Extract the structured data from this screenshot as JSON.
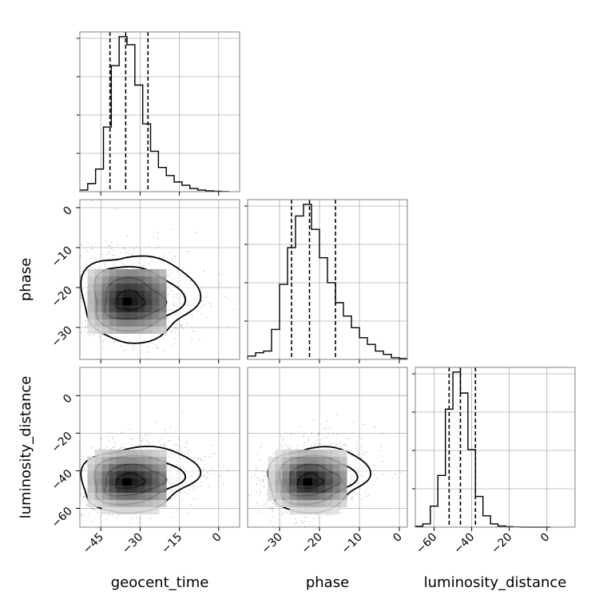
{
  "chart_data": {
    "type": "corner",
    "parameters": [
      "geocent_time",
      "phase",
      "luminosity_distance"
    ],
    "ranges": {
      "geocent_time": [
        -53,
        8
      ],
      "phase": [
        -38,
        2
      ],
      "luminosity_distance": [
        -70,
        15
      ]
    },
    "ticks": {
      "geocent_time": [
        -45,
        -30,
        -15,
        0
      ],
      "phase": [
        -30,
        -20,
        -10,
        0
      ],
      "luminosity_distance": [
        -60,
        -40,
        -20,
        0
      ]
    },
    "quantiles": {
      "geocent_time": [
        -41.5,
        -35.5,
        -27
      ],
      "phase": [
        -27,
        -22.5,
        -16
      ],
      "luminosity_distance": [
        -52,
        -46,
        -38
      ]
    },
    "histograms": {
      "geocent_time": {
        "edges": [
          -53,
          -50,
          -47,
          -44,
          -41,
          -38,
          -35,
          -32,
          -29,
          -26,
          -23,
          -20,
          -17,
          -14,
          -11,
          -8,
          -5,
          -2,
          1,
          4
        ],
        "counts": [
          1,
          5,
          14,
          40,
          78,
          96,
          91,
          66,
          42,
          25,
          15,
          10,
          6,
          4,
          2,
          1,
          0.5,
          0.3,
          0.1
        ]
      },
      "phase": {
        "edges": [
          -38,
          -36,
          -34,
          -32,
          -30,
          -28,
          -26,
          -24,
          -22,
          -20,
          -18,
          -16,
          -14,
          -12,
          -10,
          -8,
          -6,
          -4,
          -2,
          0,
          2
        ],
        "counts": [
          2,
          4,
          5,
          18,
          45,
          67,
          86,
          93,
          78,
          61,
          46,
          34,
          26,
          19,
          13,
          9,
          5,
          3,
          1,
          0.5
        ]
      },
      "luminosity_distance": {
        "edges": [
          -70,
          -66,
          -62,
          -58,
          -54,
          -50,
          -46,
          -42,
          -38,
          -34,
          -30,
          -26,
          -22,
          -18,
          -14,
          -10,
          -6,
          -2,
          2
        ],
        "counts": [
          0.5,
          2,
          13,
          32,
          73,
          96,
          83,
          48,
          19,
          7,
          2,
          0.7,
          0.3,
          0.1,
          0,
          0,
          0,
          0
        ]
      }
    },
    "joint_peaks": {
      "phase|geocent_time": {
        "x": -35,
        "y": -23.5
      },
      "luminosity_distance|geocent_time": {
        "x": -35,
        "y": -46
      },
      "luminosity_distance|phase": {
        "x": -23,
        "y": -46
      }
    },
    "grid": true
  }
}
